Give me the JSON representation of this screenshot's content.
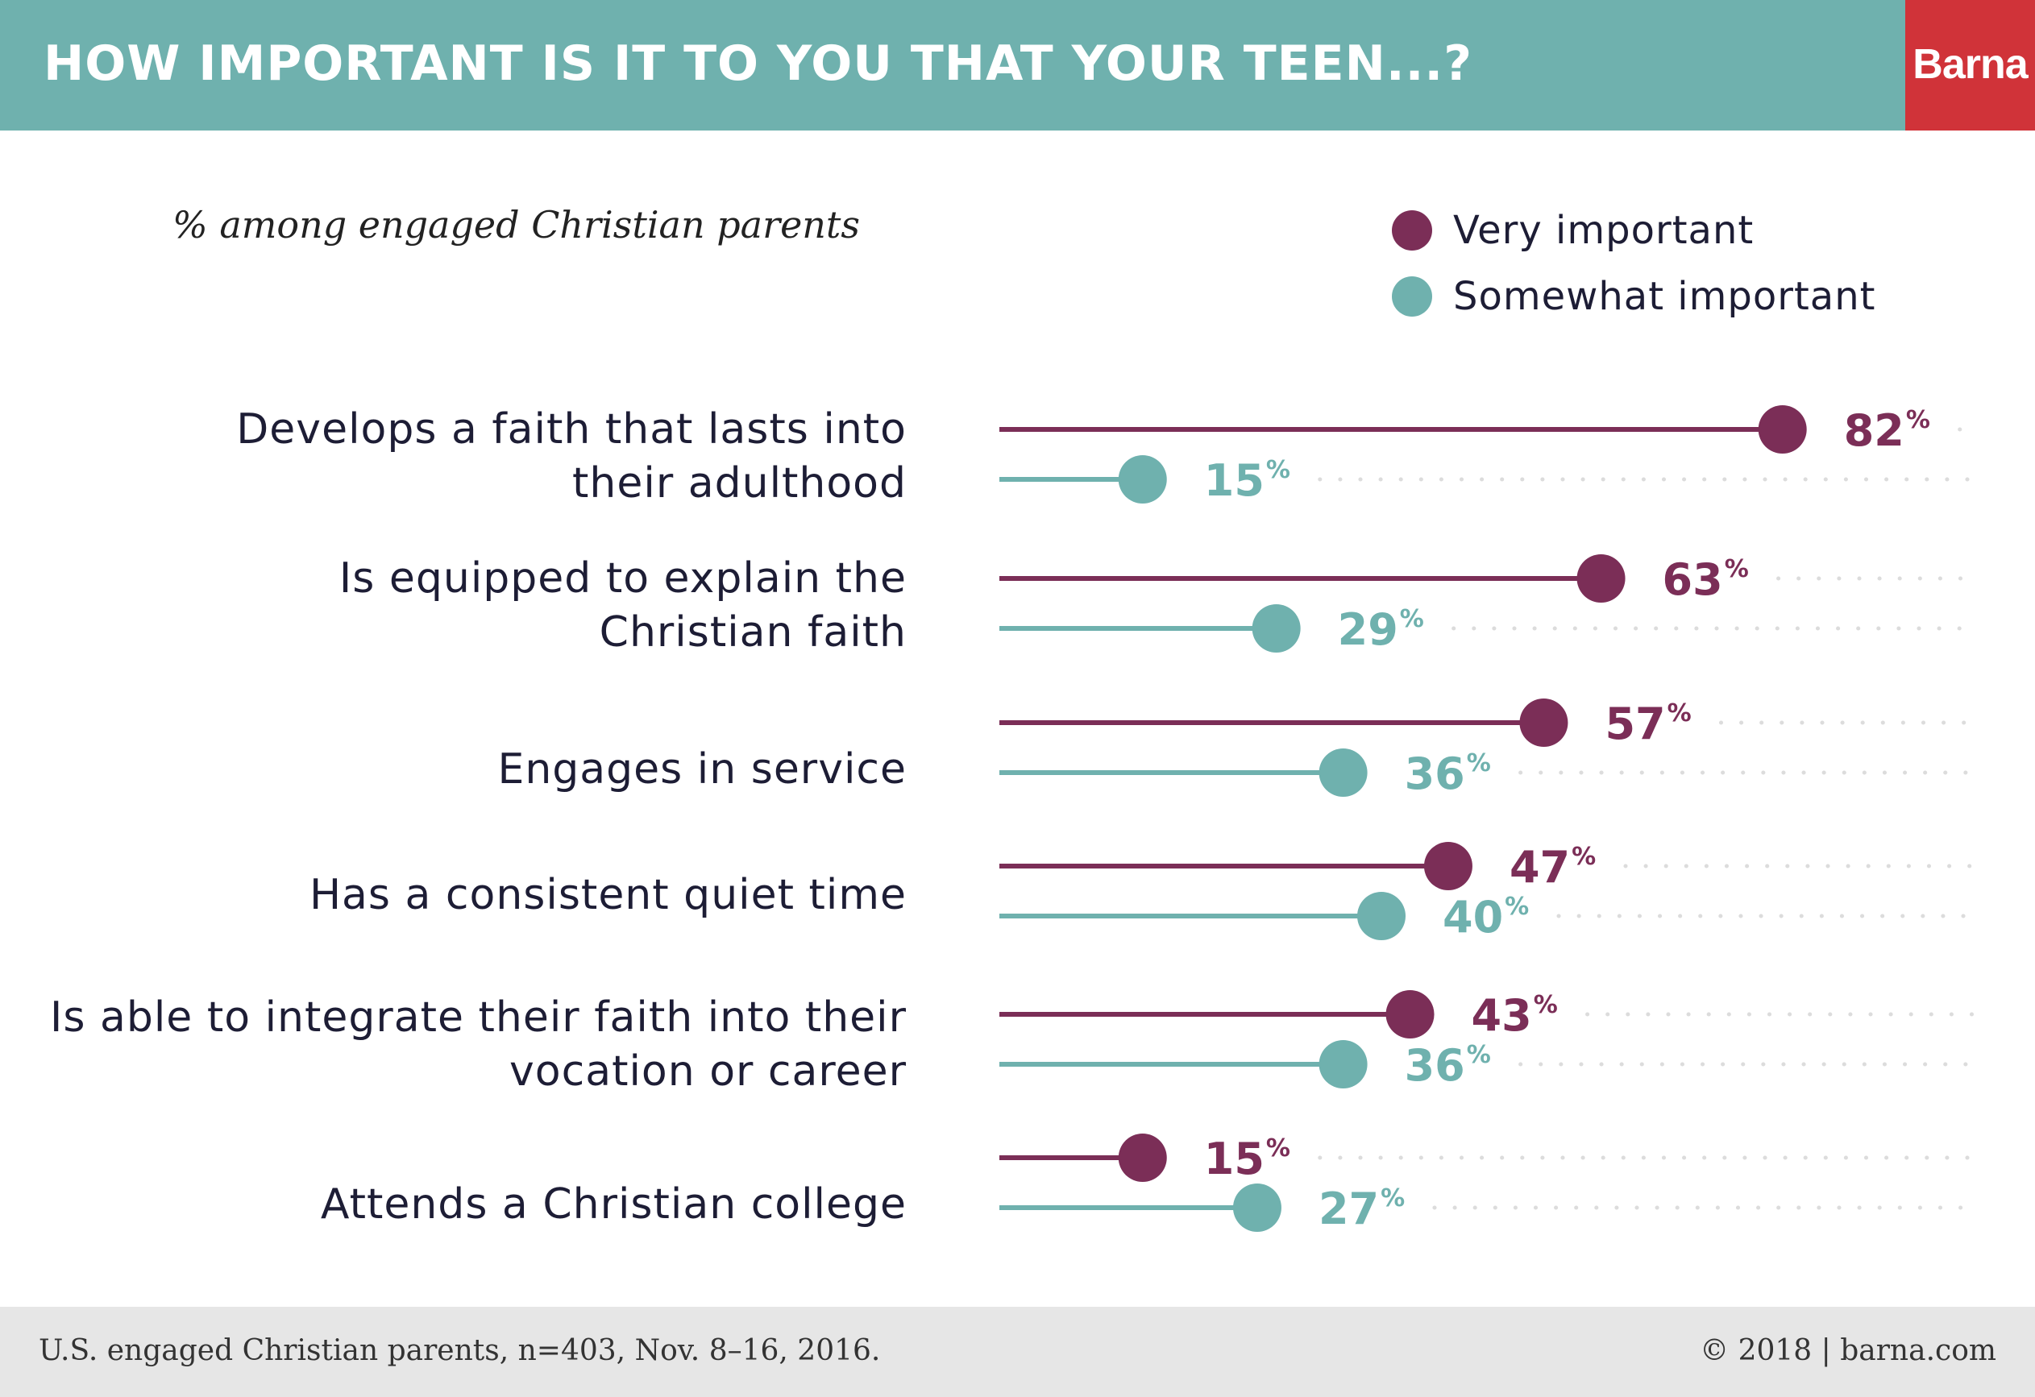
{
  "header": {
    "title": "HOW IMPORTANT IS IT TO YOU THAT YOUR TEEN...?",
    "brand": "Barna"
  },
  "subtitle": "% among engaged Christian parents",
  "footer": {
    "source": "U.S. engaged Christian parents, n=403, Nov. 8–16, 2016.",
    "copyright": "© 2018 | barna.com"
  },
  "colors": {
    "very": "#7b2e57",
    "somewhat": "#6fb1ae",
    "header": "#6fb1ae",
    "brand": "#d03339",
    "dots": "#dcdcdc"
  },
  "chart_data": {
    "type": "lollipop",
    "title": "HOW IMPORTANT IS IT TO YOU THAT YOUR TEEN...?",
    "subtitle": "% among engaged Christian parents",
    "unit": "%",
    "xlim": [
      0,
      100
    ],
    "grid": "dotted",
    "legend_position": "top-right",
    "categories": [
      [
        "Develops a faith that lasts into",
        "their adulthood"
      ],
      [
        "Is equipped to explain the",
        "Christian faith"
      ],
      [
        "Engages in service"
      ],
      [
        "Has a consistent quiet time"
      ],
      [
        "Is able to integrate their faith into their",
        "vocation or career"
      ],
      [
        "Attends a Christian college"
      ]
    ],
    "series": [
      {
        "name": "Very important",
        "color": "#7b2e57",
        "values": [
          82,
          63,
          57,
          47,
          43,
          15
        ]
      },
      {
        "name": "Somewhat important",
        "color": "#6fb1ae",
        "values": [
          15,
          29,
          36,
          40,
          36,
          27
        ]
      }
    ]
  }
}
